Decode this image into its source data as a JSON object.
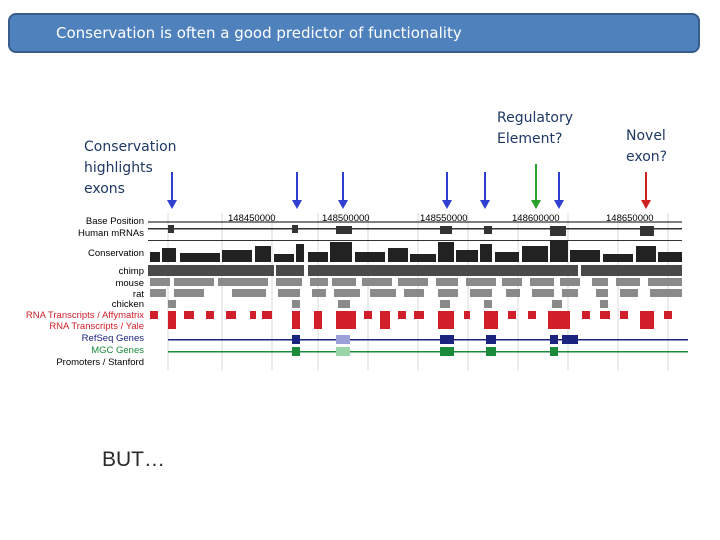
{
  "slide": {
    "title": "Conservation is often a good predictor of functionality",
    "conservation_note": [
      "Conservation",
      "highlights",
      "exons"
    ],
    "regulatory_note": [
      "Regulatory",
      "Element?"
    ],
    "novel_note": [
      "Novel",
      "exon?"
    ],
    "but_text": "BUT…"
  },
  "browser": {
    "positions": [
      "148450000",
      "148500000",
      "148550000",
      "148600000",
      "148650000"
    ],
    "tracks": [
      {
        "label": "Base Position",
        "color": "#000000"
      },
      {
        "label": "Human mRNAs",
        "color": "#000000"
      },
      {
        "label": "Conservation",
        "color": "#000000"
      },
      {
        "label": "chimp",
        "color": "#000000"
      },
      {
        "label": "mouse",
        "color": "#000000"
      },
      {
        "label": "rat",
        "color": "#000000"
      },
      {
        "label": "chicken",
        "color": "#000000"
      },
      {
        "label": "RNA Transcripts / Affymatrix",
        "color": "#d01f2a"
      },
      {
        "label": "RNA Transcripts / Yale",
        "color": "#d01f2a"
      },
      {
        "label": "RefSeq Genes",
        "color": "#1a237e"
      },
      {
        "label": "MGC Genes",
        "color": "#1b8a3a"
      },
      {
        "label": "Promoters / Stanford",
        "color": "#000000"
      }
    ]
  },
  "colors": {
    "title_bg": "#4f81bd",
    "blue_arrow": "#2e3fd0",
    "green_arrow": "#2aa02a",
    "red_arrow": "#d01f1f"
  },
  "arrows": [
    {
      "type": "blue"
    },
    {
      "type": "blue"
    },
    {
      "type": "blue"
    },
    {
      "type": "blue"
    },
    {
      "type": "blue"
    },
    {
      "type": "green"
    },
    {
      "type": "blue"
    },
    {
      "type": "red"
    }
  ]
}
